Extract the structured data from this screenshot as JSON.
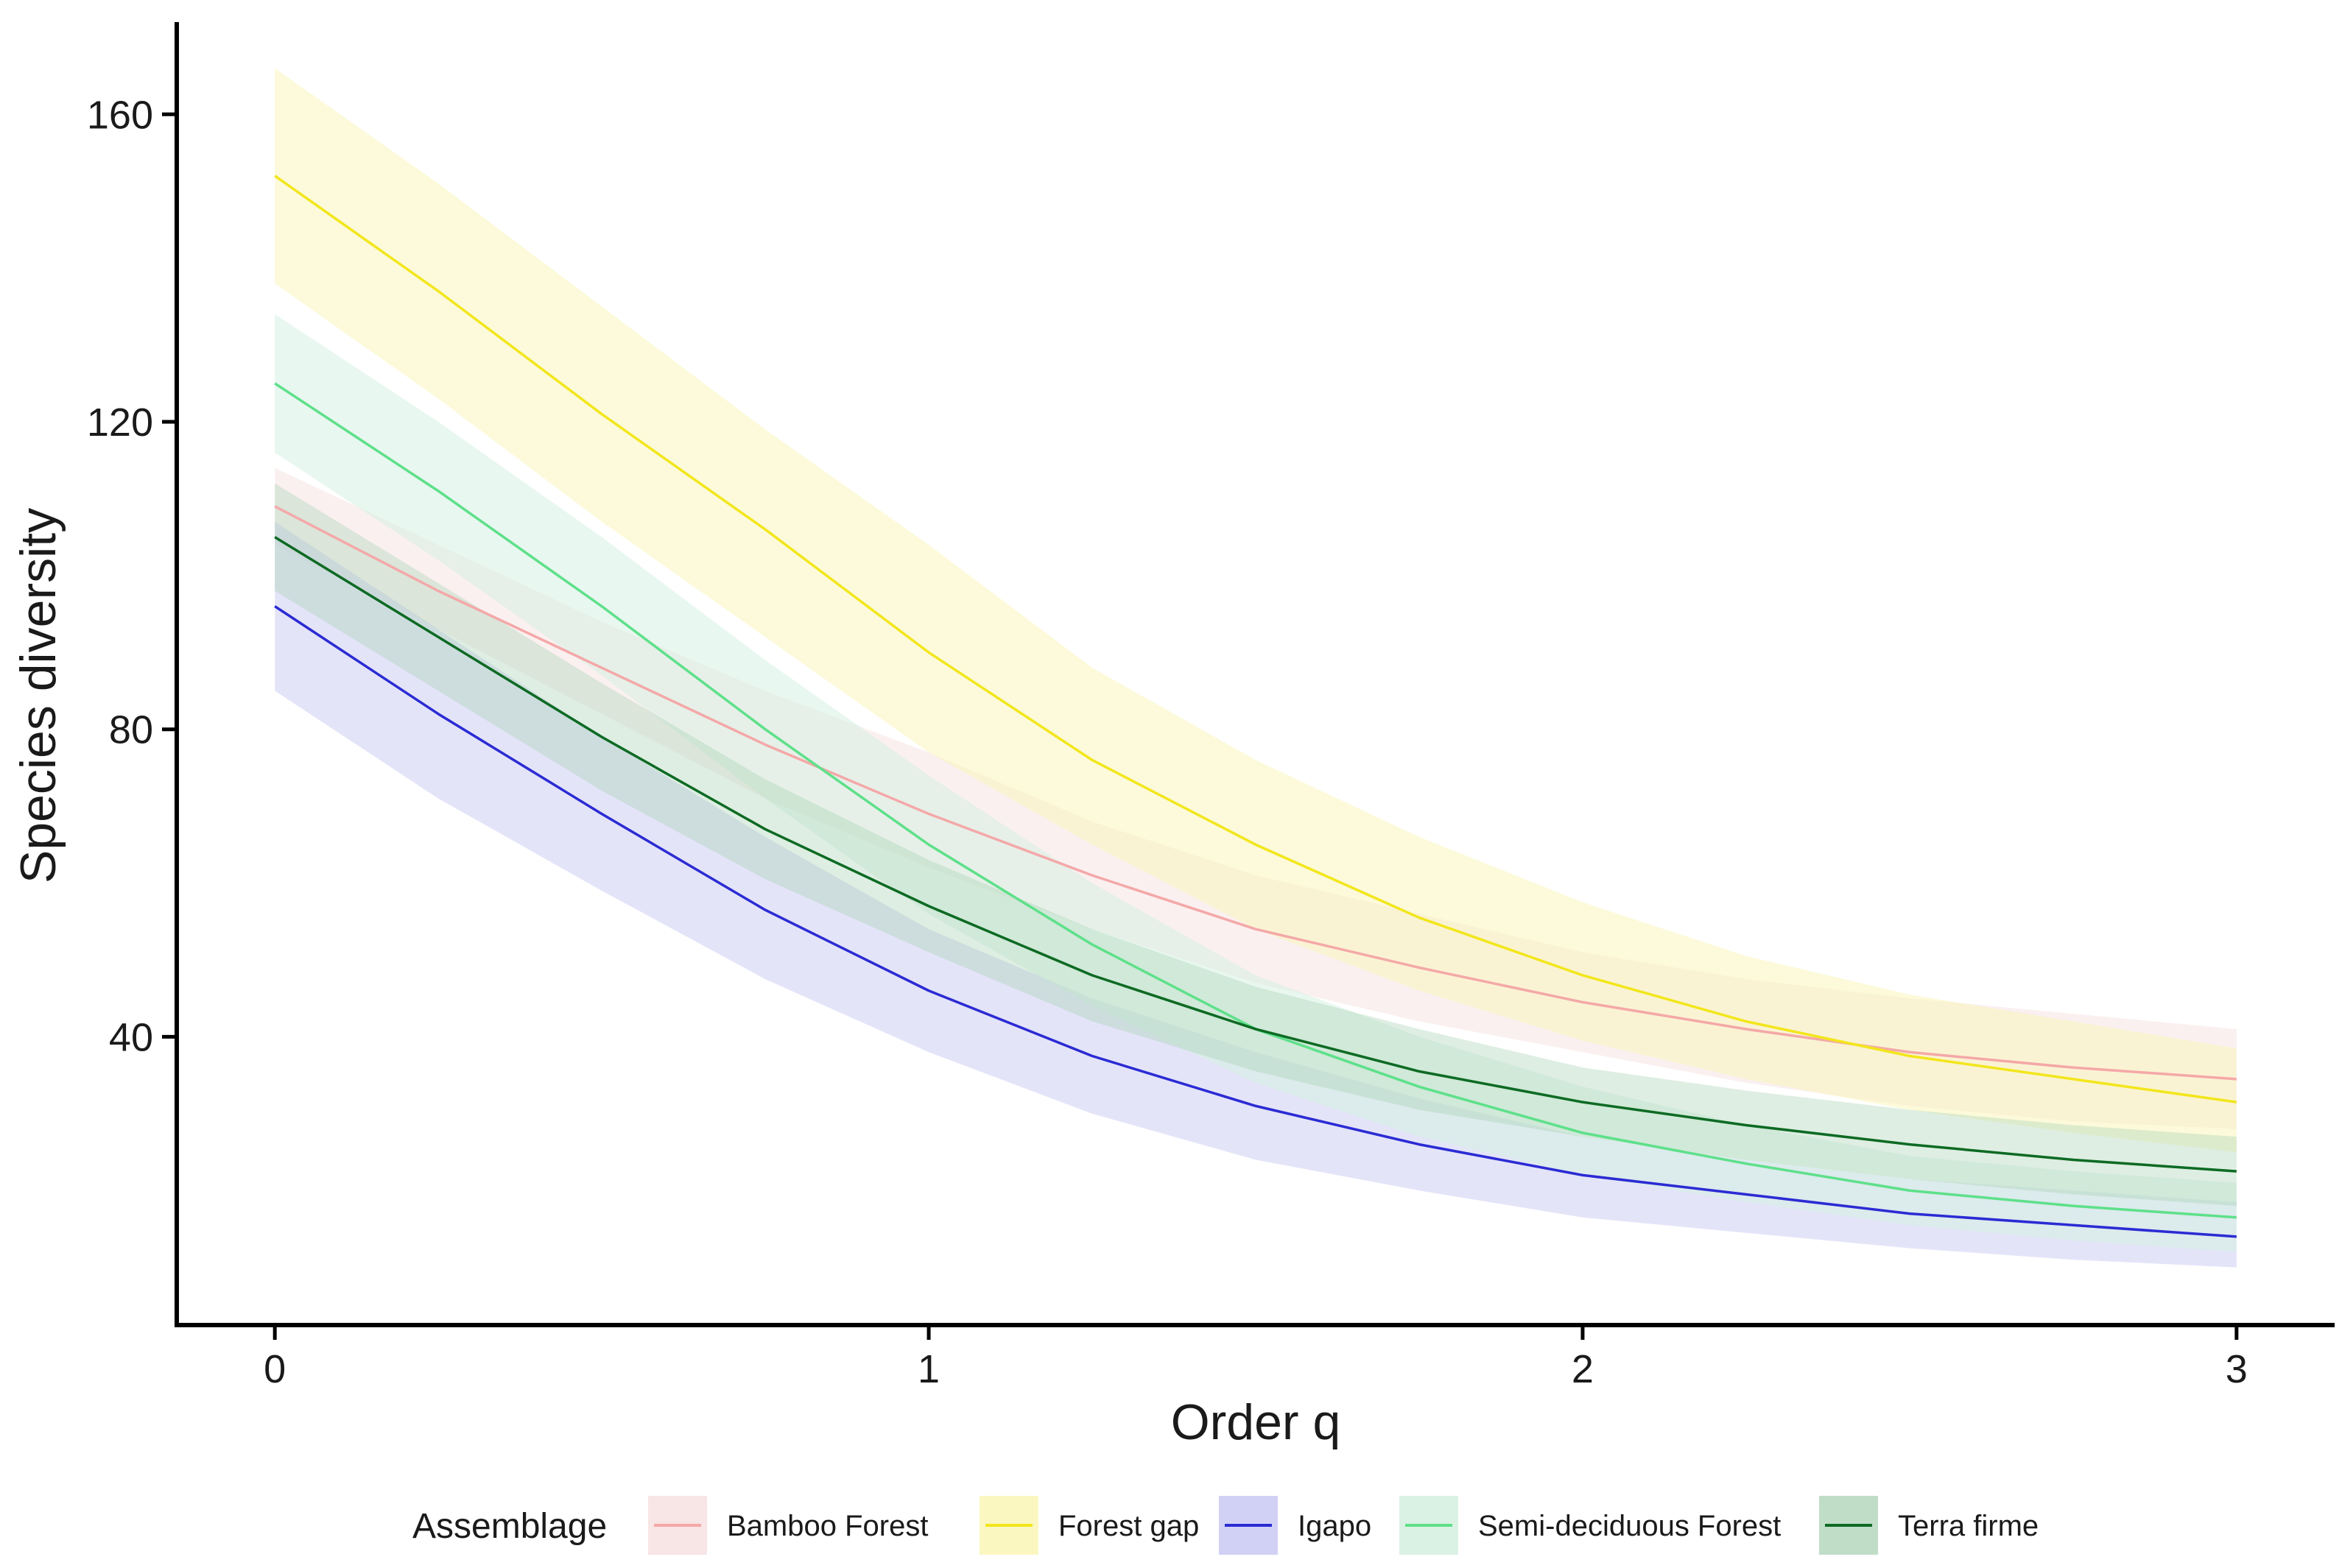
{
  "chart_data": {
    "type": "line",
    "title": "",
    "xlabel": "Order q",
    "ylabel": "Species diversity",
    "xlim": [
      -0.15,
      3.15
    ],
    "ylim": [
      2.5,
      172
    ],
    "x_ticks": [
      0,
      1,
      2,
      3
    ],
    "y_ticks": [
      40,
      80,
      120,
      160
    ],
    "grid": false,
    "legend": {
      "title": "Assemblage",
      "position": "bottom"
    },
    "x": [
      0,
      0.25,
      0.5,
      0.75,
      1,
      1.25,
      1.5,
      1.75,
      2,
      2.25,
      2.5,
      2.75,
      3
    ],
    "series": [
      {
        "name": "Bamboo Forest",
        "color": "#f4a8a8",
        "fill": "#f6dede",
        "fill_opacity": 0.45,
        "values": [
          109,
          98,
          88,
          78,
          69,
          61,
          54,
          49,
          44.5,
          41,
          38,
          36,
          34.5
        ],
        "lower": [
          104,
          93,
          82,
          71,
          62,
          54,
          47,
          42,
          38,
          34,
          31,
          29,
          28
        ],
        "upper": [
          114,
          104,
          94,
          85,
          77,
          68,
          61,
          56,
          51,
          47.5,
          45,
          43,
          41
        ]
      },
      {
        "name": "Forest gap",
        "color": "#f2e61c",
        "fill": "#faf6b6",
        "fill_opacity": 0.5,
        "values": [
          152,
          137,
          121,
          106,
          90,
          76,
          65,
          55.5,
          48,
          42,
          37.5,
          34.5,
          31.5
        ],
        "lower": [
          138,
          123,
          107,
          92,
          77,
          65,
          54,
          46,
          39.5,
          34.5,
          30.5,
          27.5,
          25
        ],
        "upper": [
          166,
          151,
          135,
          119,
          104,
          88,
          76,
          66,
          57.5,
          50.5,
          45.5,
          42,
          38.5
        ]
      },
      {
        "name": "Igapo",
        "color": "#2b2bd4",
        "fill": "#c9c9f4",
        "fill_opacity": 0.5,
        "values": [
          96,
          82,
          69,
          56.5,
          46,
          37.5,
          31,
          26,
          22,
          19.5,
          17,
          15.5,
          14
        ],
        "lower": [
          85,
          71,
          59,
          47.5,
          38,
          30,
          24,
          20,
          16.5,
          14.5,
          12.5,
          11,
          10
        ],
        "upper": [
          107,
          93,
          79,
          66,
          54,
          45,
          38,
          32,
          27,
          24,
          21.5,
          20,
          18.5
        ]
      },
      {
        "name": "Semi-deciduous Forest",
        "color": "#5ee08a",
        "fill": "#d6f1e1",
        "fill_opacity": 0.55,
        "values": [
          125,
          111,
          96,
          80,
          65,
          52,
          41,
          33.5,
          27.5,
          23.5,
          20,
          18,
          16.5
        ],
        "lower": [
          116,
          102,
          87,
          71,
          56,
          44,
          34,
          27,
          22,
          18.5,
          15.5,
          13.5,
          12
        ],
        "upper": [
          134,
          120,
          105,
          89,
          74,
          60,
          48,
          40,
          33.5,
          28.5,
          24.5,
          22.5,
          21
        ]
      },
      {
        "name": "Terra firme",
        "color": "#0d6a23",
        "fill": "#a9d1b4",
        "fill_opacity": 0.38,
        "values": [
          105,
          92,
          79,
          67,
          57,
          48,
          41,
          35.5,
          31.5,
          28.5,
          26,
          24,
          22.5
        ],
        "lower": [
          98,
          85,
          72,
          60.5,
          51,
          42,
          35.5,
          30.5,
          27,
          24,
          21.5,
          19.5,
          18
        ],
        "upper": [
          112,
          99,
          86,
          73.5,
          63,
          54,
          46.5,
          41,
          36,
          33,
          30.5,
          28.5,
          27
        ]
      }
    ]
  }
}
